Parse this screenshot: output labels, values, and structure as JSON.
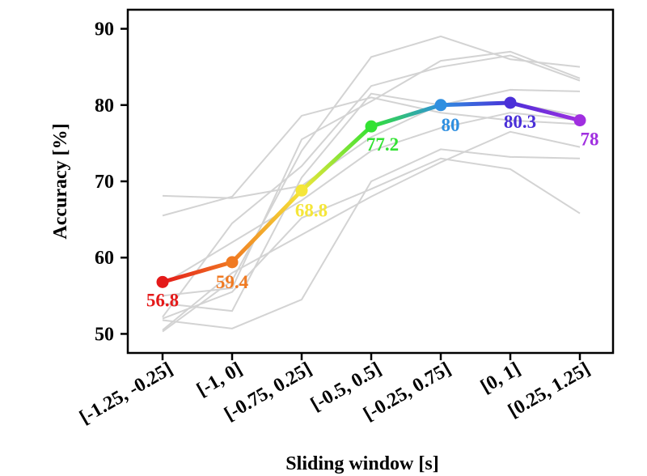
{
  "chart_data": {
    "type": "line",
    "title": "",
    "xlabel": "Sliding window [s]",
    "ylabel": "Accuracy [%]",
    "categories": [
      "[-1.25, -0.25]",
      "[-1, 0]",
      "[-0.75, 0.25]",
      "[-0.5, 0.5]",
      "[-0.25, 0.75]",
      "[0, 1]",
      "[0.25, 1.25]"
    ],
    "ylim": [
      47.5,
      92.5
    ],
    "yticks": [
      50,
      60,
      70,
      80,
      90
    ],
    "grid": false,
    "main_series": {
      "values": [
        56.8,
        59.4,
        68.8,
        77.2,
        80,
        80.3,
        78
      ],
      "labels": [
        "56.8",
        "59.4",
        "68.8",
        "77.2",
        "80",
        "80.3",
        "78"
      ],
      "colors": [
        "#e41a1a",
        "#f07a22",
        "#f5e63a",
        "#33e233",
        "#2f8fe0",
        "#4a2fd8",
        "#a02fe0"
      ]
    },
    "background_series": [
      {
        "values": [
          68.1,
          67.8,
          69.4,
          75.8,
          80.1,
          80.3,
          78.6
        ]
      },
      {
        "values": [
          65.5,
          68.0,
          78.6,
          81.0,
          79.0,
          78.0,
          77.5
        ]
      },
      {
        "values": [
          55.0,
          56.0,
          75.5,
          80.5,
          85.8,
          87.0,
          83.5
        ]
      },
      {
        "values": [
          52.2,
          64.5,
          72.0,
          82.5,
          85.0,
          86.5,
          83.2
        ]
      },
      {
        "values": [
          50.3,
          57.0,
          74.0,
          86.3,
          89.0,
          86.0,
          85.0
        ]
      },
      {
        "values": [
          54.0,
          53.0,
          70.5,
          81.5,
          80.0,
          82.0,
          81.8
        ]
      },
      {
        "values": [
          51.8,
          50.7,
          54.5,
          70.0,
          74.2,
          73.2,
          73.0
        ]
      },
      {
        "values": [
          52.0,
          55.5,
          65.2,
          69.0,
          73.0,
          71.6,
          65.8
        ]
      },
      {
        "values": [
          50.5,
          58.0,
          63.0,
          68.0,
          72.5,
          76.5,
          74.5
        ]
      },
      {
        "values": [
          56.5,
          62.0,
          67.5,
          74.0,
          77.0,
          79.0,
          78.0
        ]
      }
    ],
    "background_color": "#d3d3d3"
  }
}
